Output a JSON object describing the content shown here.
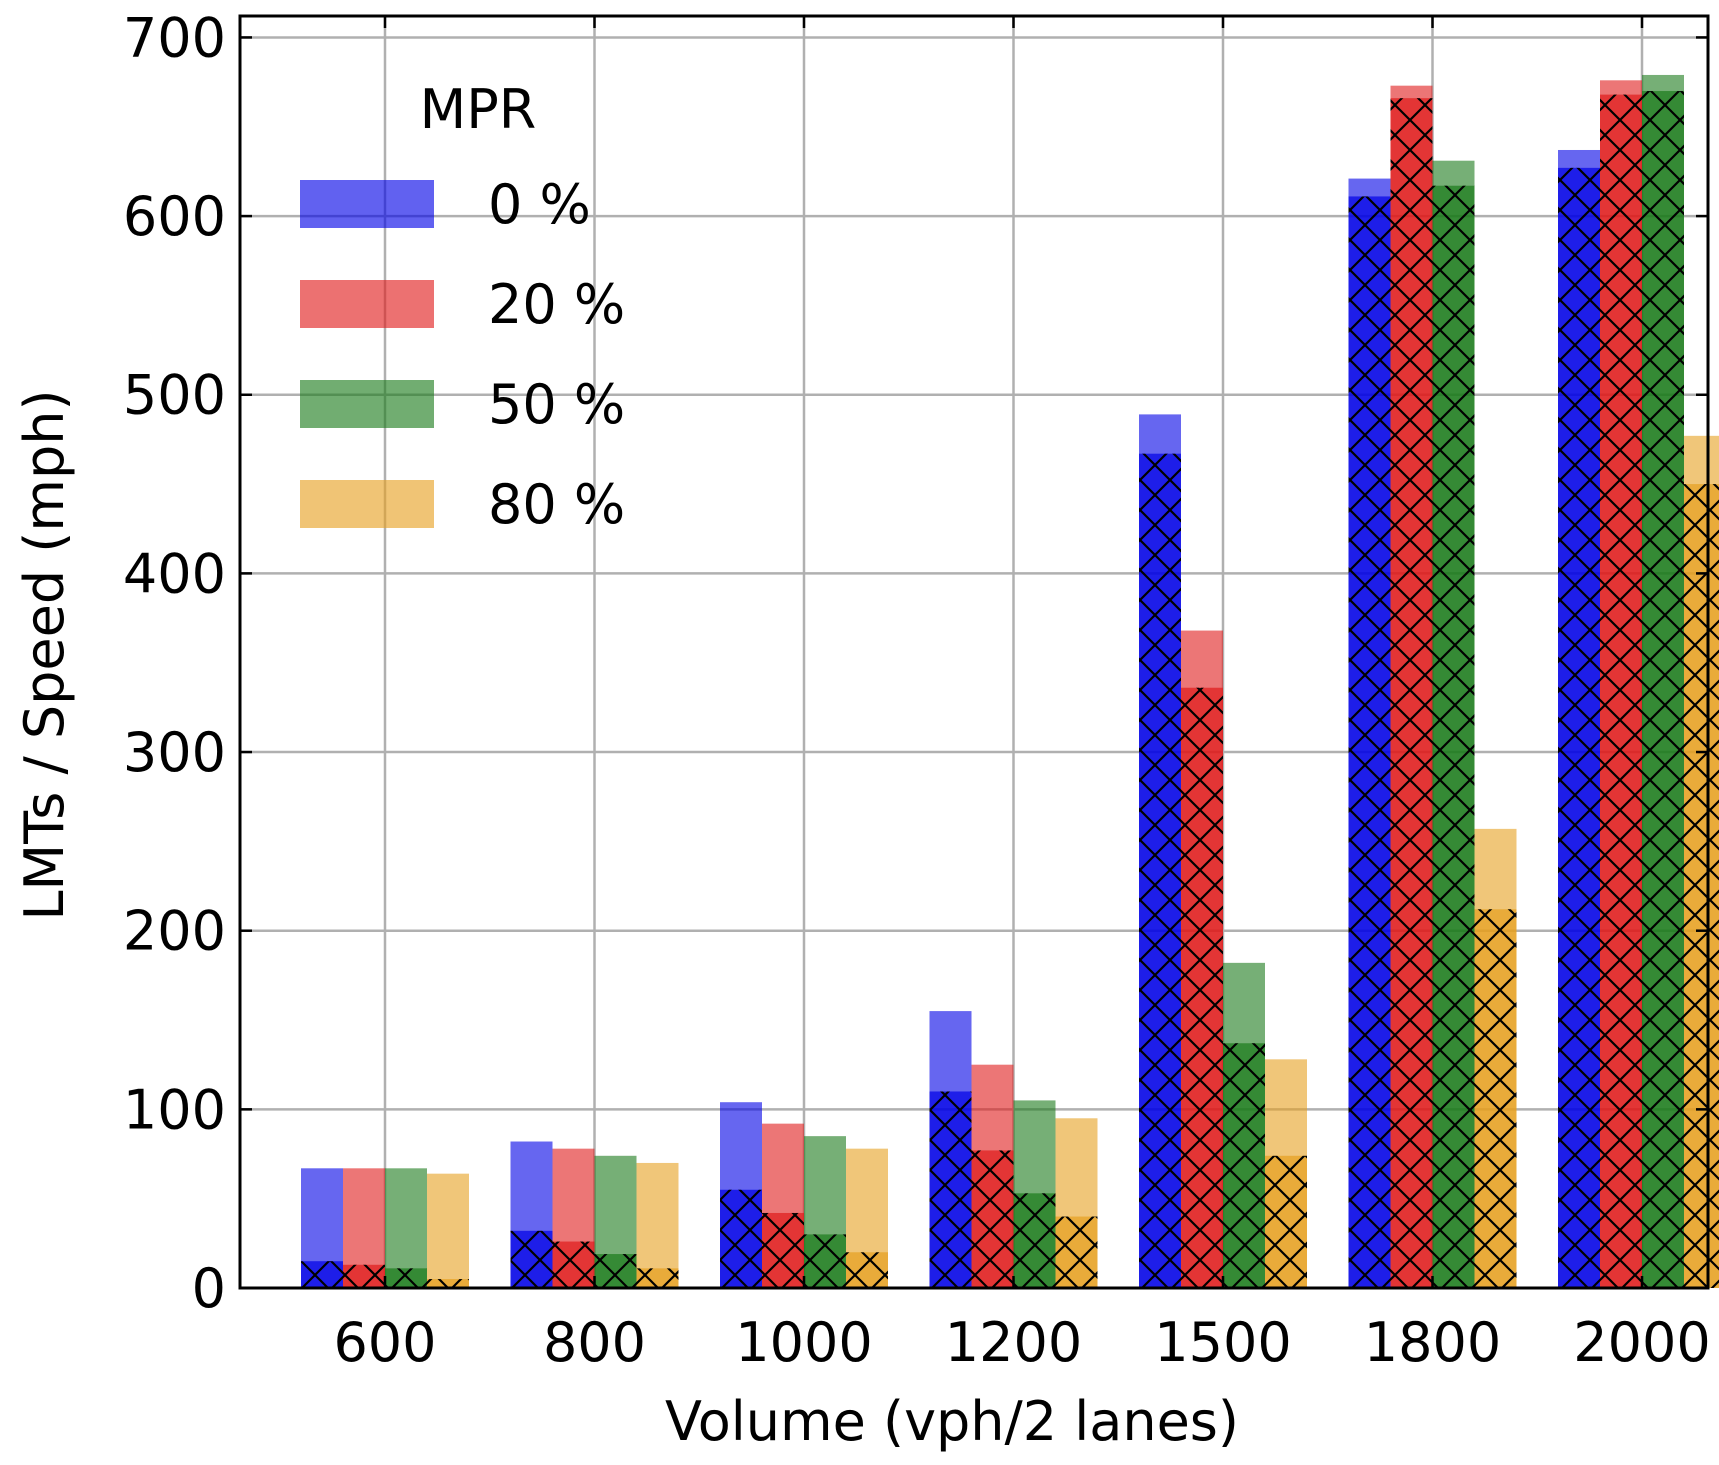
{
  "chart_data": {
    "type": "bar",
    "title": "",
    "xlabel": "Volume (vph/2 lanes)",
    "ylabel": "LMTs / Speed (mph)",
    "categories": [
      "600",
      "800",
      "1000",
      "1200",
      "1500",
      "1800",
      "2000"
    ],
    "ylim": [
      0,
      712
    ],
    "yticks": [
      0,
      100,
      200,
      300,
      400,
      500,
      600,
      700
    ],
    "grid": true,
    "legend": {
      "title": "MPR",
      "placement": "top-left"
    },
    "series": [
      {
        "name": "0 %",
        "color": "#0000e6",
        "speed": [
          67,
          82,
          104,
          155,
          489,
          621,
          637
        ],
        "lmts": [
          15,
          32,
          55,
          110,
          467,
          611,
          627
        ]
      },
      {
        "name": "20 %",
        "color": "#e01a1a",
        "speed": [
          67,
          78,
          92,
          125,
          368,
          673,
          676
        ],
        "lmts": [
          13,
          26,
          42,
          77,
          336,
          666,
          668
        ]
      },
      {
        "name": "50 %",
        "color": "#1a7a1a",
        "speed": [
          67,
          74,
          85,
          105,
          182,
          631,
          679
        ],
        "lmts": [
          11,
          19,
          30,
          53,
          137,
          617,
          670
        ]
      },
      {
        "name": "80 %",
        "color": "#e6a020",
        "speed": [
          64,
          70,
          78,
          95,
          128,
          257,
          477
        ],
        "lmts": [
          5,
          11,
          20,
          40,
          74,
          212,
          450
        ]
      }
    ]
  }
}
